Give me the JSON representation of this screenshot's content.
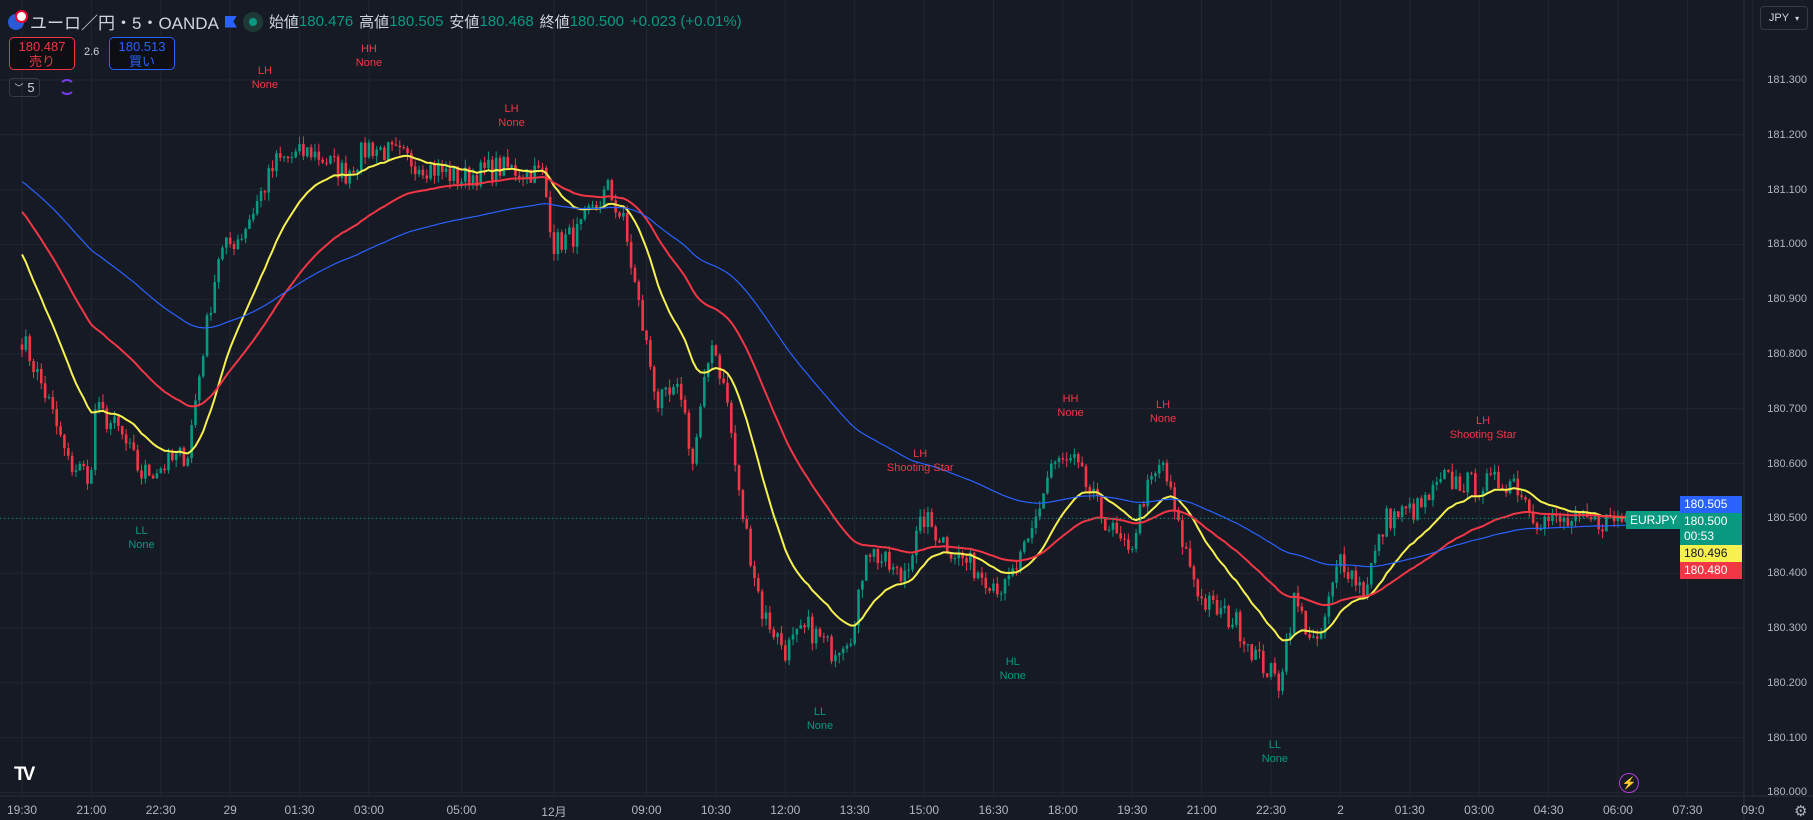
{
  "header": {
    "symbol": "ユーロ／円・5・OANDA",
    "open_label": "始値",
    "open": "180.476",
    "high_label": "高値",
    "high": "180.505",
    "low_label": "安値",
    "low": "180.468",
    "close_label": "終値",
    "close": "180.500",
    "change": "+0.023 (+0.01%)"
  },
  "trade": {
    "sell_price": "180.487",
    "sell_label": "売り",
    "spread": "2.6",
    "buy_price": "180.513",
    "buy_label": "買い"
  },
  "interval": "5",
  "currency": "JPY",
  "price_axis": [
    "181.300",
    "181.200",
    "181.100",
    "181.000",
    "180.900",
    "180.800",
    "180.700",
    "180.600",
    "180.500",
    "180.400",
    "180.300",
    "180.200",
    "180.100",
    "180.000"
  ],
  "time_axis": [
    {
      "i": 0,
      "t": "19:30"
    },
    {
      "i": 18,
      "t": "21:00"
    },
    {
      "i": 36,
      "t": "22:30"
    },
    {
      "i": 54,
      "t": "29"
    },
    {
      "i": 72,
      "t": "01:30"
    },
    {
      "i": 90,
      "t": "03:00"
    },
    {
      "i": 114,
      "t": "05:00"
    },
    {
      "i": 138,
      "t": "12月"
    },
    {
      "i": 162,
      "t": "09:00"
    },
    {
      "i": 180,
      "t": "10:30"
    },
    {
      "i": 198,
      "t": "12:00"
    },
    {
      "i": 216,
      "t": "13:30"
    },
    {
      "i": 234,
      "t": "15:00"
    },
    {
      "i": 252,
      "t": "16:30"
    },
    {
      "i": 270,
      "t": "18:00"
    },
    {
      "i": 288,
      "t": "19:30"
    },
    {
      "i": 306,
      "t": "21:00"
    },
    {
      "i": 324,
      "t": "22:30"
    },
    {
      "i": 342,
      "t": "2"
    },
    {
      "i": 360,
      "t": "01:30"
    },
    {
      "i": 378,
      "t": "03:00"
    },
    {
      "i": 396,
      "t": "04:30"
    },
    {
      "i": 414,
      "t": "06:00"
    },
    {
      "i": 432,
      "t": "07:30"
    },
    {
      "i": 449,
      "t": "09:0"
    }
  ],
  "badges": {
    "symbol": "EURJPY",
    "blue": "180.505",
    "last": "180.500",
    "countdown": "00:53",
    "yellow": "180.496",
    "red": "180.480"
  },
  "colors": {
    "up": "#089981",
    "down": "#f23645",
    "ma_fast": "#f7f14f",
    "ma_mid": "#f23645",
    "ma_slow": "#2962ff",
    "bg": "#161a25",
    "grid": "#232632"
  },
  "chart_data": {
    "type": "candlestick",
    "interval_minutes": 5,
    "ylim": [
      180.0,
      181.3
    ],
    "close_path": [
      [
        0,
        180.83
      ],
      [
        3,
        180.78
      ],
      [
        7,
        180.71
      ],
      [
        12,
        180.6
      ],
      [
        18,
        180.58
      ],
      [
        19,
        180.7
      ],
      [
        25,
        180.66
      ],
      [
        31,
        180.58
      ],
      [
        38,
        180.6
      ],
      [
        43,
        180.62
      ],
      [
        47,
        180.81
      ],
      [
        51,
        180.98
      ],
      [
        57,
        181.02
      ],
      [
        66,
        181.15
      ],
      [
        75,
        181.17
      ],
      [
        84,
        181.13
      ],
      [
        90,
        181.18
      ],
      [
        102,
        181.15
      ],
      [
        114,
        181.12
      ],
      [
        123,
        181.14
      ],
      [
        135,
        181.13
      ],
      [
        138,
        181.0
      ],
      [
        144,
        181.02
      ],
      [
        152,
        181.1
      ],
      [
        156,
        181.04
      ],
      [
        161,
        180.85
      ],
      [
        165,
        180.71
      ],
      [
        171,
        180.73
      ],
      [
        174,
        180.6
      ],
      [
        179,
        180.83
      ],
      [
        183,
        180.71
      ],
      [
        186,
        180.54
      ],
      [
        192,
        180.33
      ],
      [
        198,
        180.26
      ],
      [
        204,
        180.3
      ],
      [
        210,
        180.26
      ],
      [
        216,
        180.3
      ],
      [
        219,
        180.45
      ],
      [
        228,
        180.39
      ],
      [
        234,
        180.5
      ],
      [
        243,
        180.43
      ],
      [
        255,
        180.37
      ],
      [
        261,
        180.45
      ],
      [
        267,
        180.6
      ],
      [
        273,
        180.6
      ],
      [
        279,
        180.52
      ],
      [
        287,
        180.43
      ],
      [
        291,
        180.54
      ],
      [
        296,
        180.6
      ],
      [
        300,
        180.48
      ],
      [
        306,
        180.35
      ],
      [
        315,
        180.31
      ],
      [
        321,
        180.24
      ],
      [
        326,
        180.2
      ],
      [
        330,
        180.35
      ],
      [
        336,
        180.26
      ],
      [
        342,
        180.43
      ],
      [
        348,
        180.37
      ],
      [
        354,
        180.5
      ],
      [
        363,
        180.52
      ],
      [
        369,
        180.57
      ],
      [
        378,
        180.56
      ],
      [
        387,
        180.57
      ],
      [
        393,
        180.5
      ],
      [
        402,
        180.49
      ],
      [
        416,
        180.5
      ]
    ],
    "moving_averages": [
      {
        "name": "fast",
        "period": 20,
        "start": 181.0
      },
      {
        "name": "mid",
        "period": 50,
        "start": 181.07
      },
      {
        "name": "slow",
        "period": 110,
        "start": 181.12
      }
    ],
    "annotations": [
      {
        "i": 63,
        "p": 181.33,
        "lines": [
          "LH",
          "None"
        ],
        "side": "high"
      },
      {
        "i": 90,
        "p": 181.37,
        "lines": [
          "HH",
          "None"
        ],
        "side": "high"
      },
      {
        "i": 127,
        "p": 181.26,
        "lines": [
          "LH",
          "None"
        ],
        "side": "high"
      },
      {
        "i": 31,
        "p": 180.49,
        "lines": [
          "LL",
          "None"
        ],
        "side": "low"
      },
      {
        "i": 233,
        "p": 180.63,
        "lines": [
          "LH",
          "Shooting Star"
        ],
        "side": "high"
      },
      {
        "i": 272,
        "p": 180.73,
        "lines": [
          "HH",
          "None"
        ],
        "side": "high"
      },
      {
        "i": 296,
        "p": 180.72,
        "lines": [
          "LH",
          "None"
        ],
        "side": "high"
      },
      {
        "i": 379,
        "p": 180.69,
        "lines": [
          "LH",
          "Shooting Star"
        ],
        "side": "high"
      },
      {
        "i": 207,
        "p": 180.16,
        "lines": [
          "LL",
          "None"
        ],
        "side": "low"
      },
      {
        "i": 257,
        "p": 180.25,
        "lines": [
          "HL",
          "None"
        ],
        "side": "low"
      },
      {
        "i": 325,
        "p": 180.1,
        "lines": [
          "LL",
          "None"
        ],
        "side": "low"
      }
    ]
  }
}
